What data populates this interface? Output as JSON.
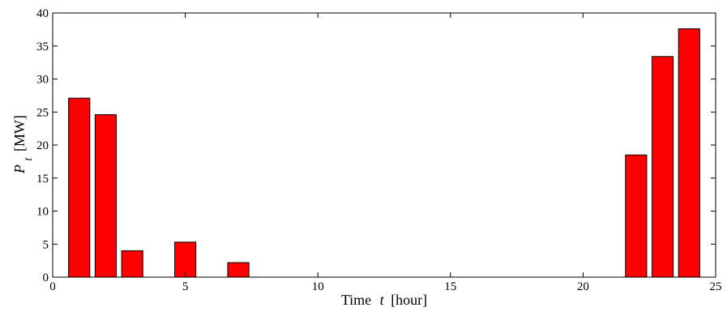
{
  "chart_data": {
    "type": "bar",
    "x": [
      1,
      2,
      3,
      5,
      7,
      22,
      23,
      24
    ],
    "values": [
      27.1,
      24.6,
      4.0,
      5.3,
      2.2,
      18.5,
      33.4,
      37.6
    ],
    "xlabel": {
      "prefix": "Time",
      "var": "t",
      "unit": "[hour]"
    },
    "ylabel": {
      "var": "P",
      "sub": "t",
      "unit": "[MW]"
    },
    "xlim": [
      0,
      25
    ],
    "ylim": [
      0,
      40
    ],
    "xticks": [
      0,
      5,
      10,
      15,
      20,
      25
    ],
    "yticks": [
      0,
      5,
      10,
      15,
      20,
      25,
      30,
      35,
      40
    ],
    "grid": false,
    "bar_color": "#ff0000",
    "edge_color": "#000000"
  }
}
